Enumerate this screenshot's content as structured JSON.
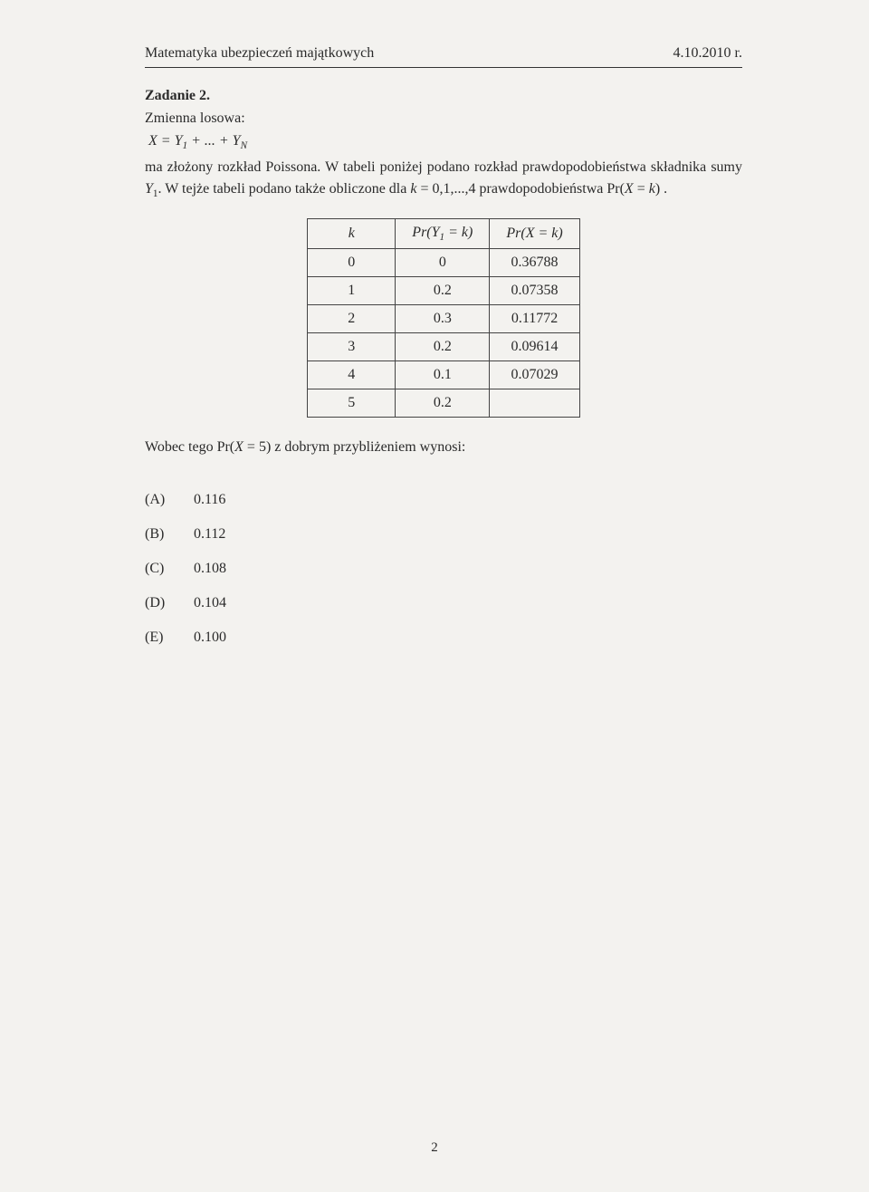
{
  "header": {
    "left": "Matematyka ubezpieczeń majątkowych",
    "right": "4.10.2010 r."
  },
  "task": {
    "title": "Zadanie 2.",
    "line1": "Zmienna losowa:",
    "formula": "X = Y₁ + ... + Y_N",
    "para1_a": "ma złożony rozkład Poissona. W tabeli poniżej podano rozkład prawdopodobieństwa składnika sumy ",
    "para1_b": ". W tejże tabeli podano także obliczone dla ",
    "para1_c": " prawdopodobieństwa ",
    "para1_y": "Y₁",
    "para1_k": "k = 0,1,...,4",
    "para1_pr": "Pr(X = k) ."
  },
  "table": {
    "headers": [
      "k",
      "Pr(Y₁ = k)",
      "Pr(X = k)"
    ],
    "rows": [
      [
        "0",
        "0",
        "0.36788"
      ],
      [
        "1",
        "0.2",
        "0.07358"
      ],
      [
        "2",
        "0.3",
        "0.11772"
      ],
      [
        "3",
        "0.2",
        "0.09614"
      ],
      [
        "4",
        "0.1",
        "0.07029"
      ],
      [
        "5",
        "0.2",
        ""
      ]
    ]
  },
  "question": {
    "pre": "Wobec tego ",
    "pr": "Pr(X = 5)",
    "post": " z dobrym przybliżeniem wynosi:"
  },
  "answers": [
    {
      "label": "(A)",
      "value": "0.116"
    },
    {
      "label": "(B)",
      "value": "0.112"
    },
    {
      "label": "(C)",
      "value": "0.108"
    },
    {
      "label": "(D)",
      "value": "0.104"
    },
    {
      "label": "(E)",
      "value": "0.100"
    }
  ],
  "page_number": "2"
}
